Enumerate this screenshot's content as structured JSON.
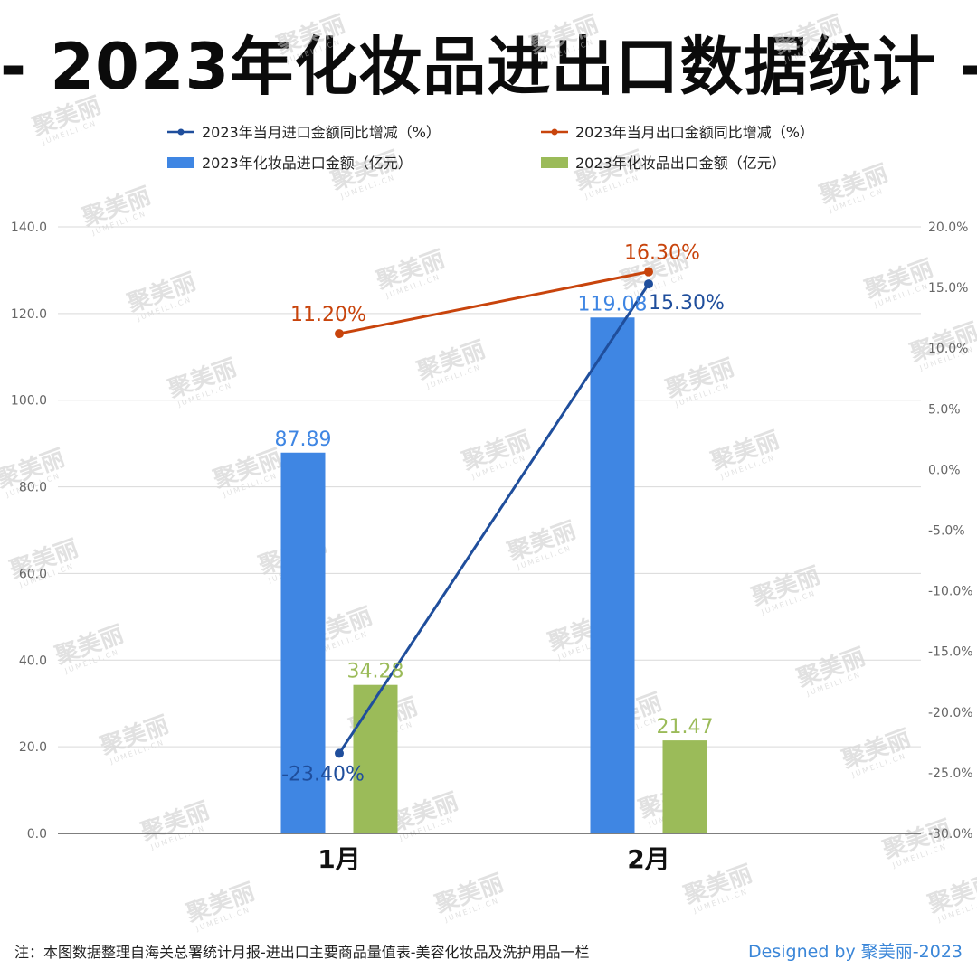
{
  "title": "- 2023年化妆品进出口数据统计 -",
  "footnote": "注：本图数据整理自海关总署统计月报-进出口主要商品量值表-美容化妆品及洗护用品一栏",
  "credit": "Designed by 聚美丽-2023",
  "watermark": "聚美丽",
  "watermark_sub": "JUMEILI.CN",
  "colors": {
    "import_bar": "#3f86e3",
    "export_bar": "#9bbb59",
    "import_line": "#1f4e9c",
    "export_line": "#c8440c",
    "grid": "#d9d9d9",
    "axis_text": "#666666"
  },
  "chart_data": {
    "type": "bar",
    "categories": [
      "1月",
      "2月"
    ],
    "series": [
      {
        "name": "2023年化妆品进口金额（亿元）",
        "type": "bar",
        "axis": "left",
        "values": [
          87.89,
          119.08
        ],
        "labels": [
          "87.89",
          "119.08"
        ]
      },
      {
        "name": "2023年化妆品出口金额（亿元）",
        "type": "bar",
        "axis": "left",
        "values": [
          34.28,
          21.47
        ],
        "labels": [
          "34.28",
          "21.47"
        ]
      },
      {
        "name": "2023年当月进口金额同比增减（%）",
        "type": "line",
        "axis": "right",
        "values": [
          -23.4,
          15.3
        ],
        "labels": [
          "-23.40%",
          "15.30%"
        ]
      },
      {
        "name": "2023年当月出口金额同比增减（%）",
        "type": "line",
        "axis": "right",
        "values": [
          11.2,
          16.3
        ],
        "labels": [
          "11.20%",
          "16.30%"
        ]
      }
    ],
    "y_left": {
      "min": 0,
      "max": 140,
      "step": 20,
      "ticks": [
        "0.0",
        "20.0",
        "40.0",
        "60.0",
        "80.0",
        "100.0",
        "120.0",
        "140.0"
      ]
    },
    "y_right": {
      "min": -30,
      "max": 20,
      "step": 5,
      "ticks": [
        "-30.0%",
        "-25.0%",
        "-20.0%",
        "-15.0%",
        "-10.0%",
        "-5.0%",
        "0.0%",
        "5.0%",
        "10.0%",
        "15.0%",
        "20.0%"
      ]
    },
    "grid": true,
    "legend_position": "top"
  }
}
